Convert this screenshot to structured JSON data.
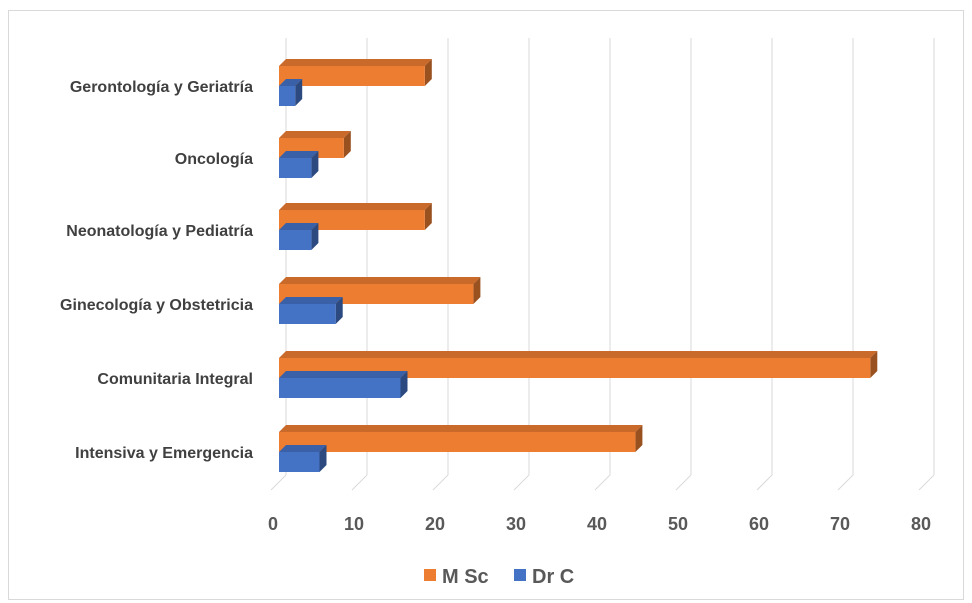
{
  "chart_data": {
    "type": "bar",
    "orientation": "horizontal",
    "style": "3d-clustered",
    "categories": [
      "Intensiva y Emergencia",
      "Comunitaria Integral",
      "Ginecología y Obstetricia",
      "Neonatología y Pediatría",
      "Oncología",
      "Gerontología y Geriatría"
    ],
    "series": [
      {
        "name": "M Sc",
        "color": "#ed7d31",
        "values": [
          44,
          73,
          24,
          18,
          8,
          18
        ]
      },
      {
        "name": "Dr C",
        "color": "#4472c4",
        "values": [
          5,
          15,
          7,
          4,
          4,
          2
        ]
      }
    ],
    "xlim": [
      0,
      80
    ],
    "xticks": [
      0,
      10,
      20,
      30,
      40,
      50,
      60,
      70,
      80
    ],
    "grid": true,
    "legend_position": "bottom",
    "title": "",
    "xlabel": "",
    "ylabel": ""
  }
}
